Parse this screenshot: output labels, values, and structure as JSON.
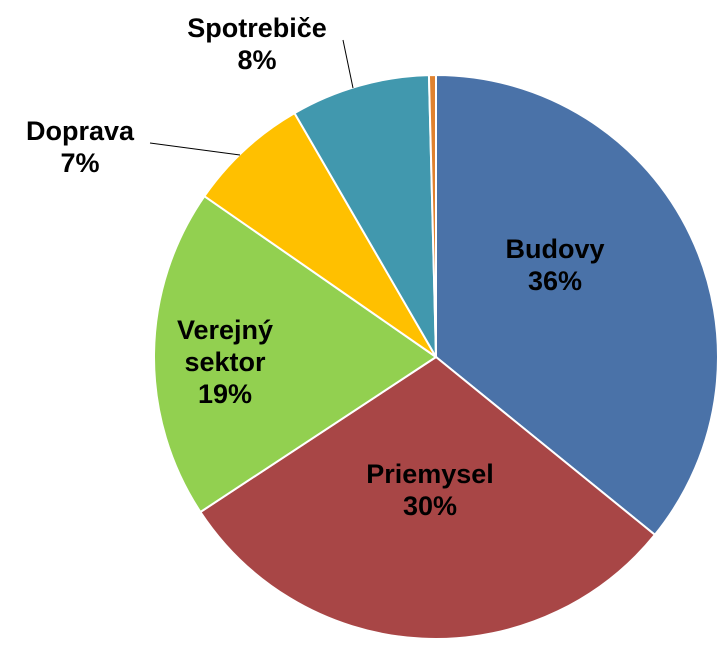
{
  "chart_data": {
    "type": "pie",
    "categories": [
      "Budovy",
      "Priemysel",
      "Verejný sektor",
      "Doprava",
      "Spotrebiče",
      null
    ],
    "values": [
      36,
      30,
      19,
      7,
      8,
      0.4
    ],
    "value_labels": [
      "36%",
      "30%",
      "19%",
      "7%",
      "8%",
      null
    ],
    "colors": [
      "#4a72a8",
      "#a84646",
      "#92d050",
      "#ffc000",
      "#4198ae",
      "#e0822f"
    ]
  }
}
